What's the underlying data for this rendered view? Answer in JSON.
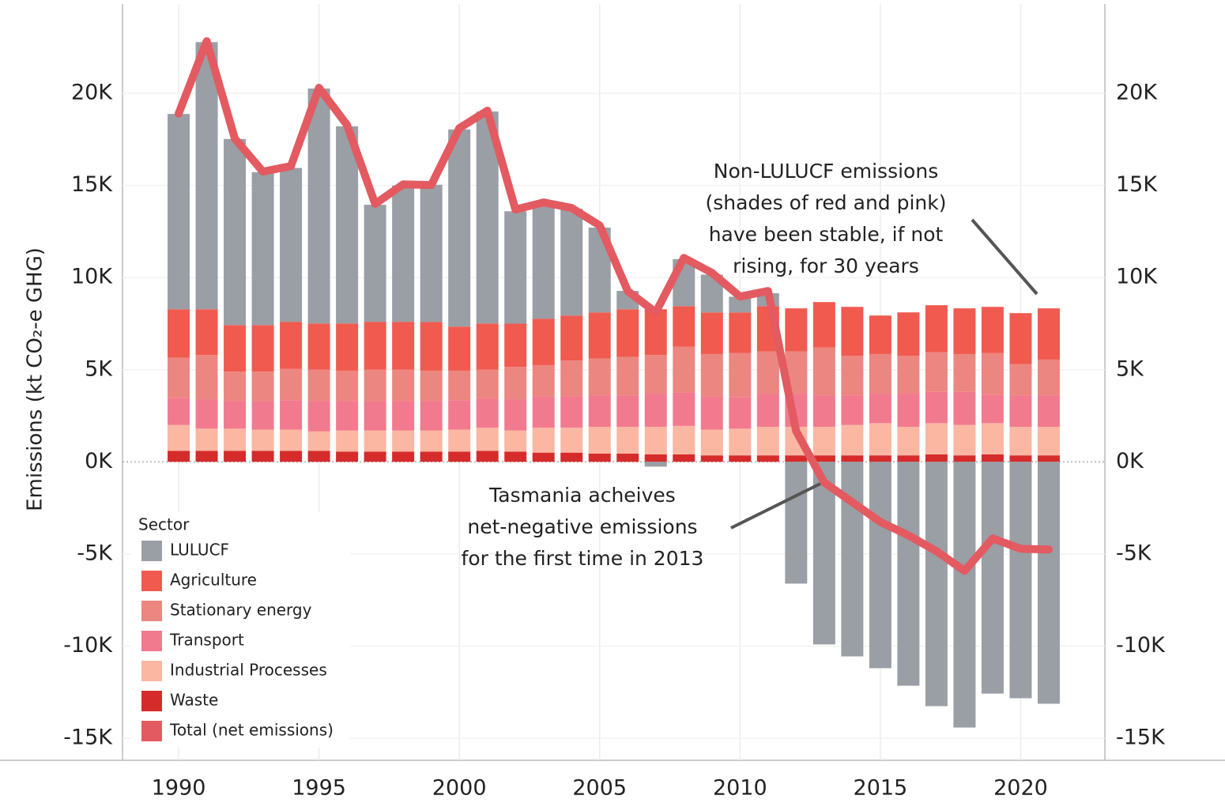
{
  "chart_data": {
    "type": "bar",
    "y_label": "Emissions (kt CO₂-e GHG)",
    "x": [
      1990,
      1991,
      1992,
      1993,
      1994,
      1995,
      1996,
      1997,
      1998,
      1999,
      2000,
      2001,
      2002,
      2003,
      2004,
      2005,
      2006,
      2007,
      2008,
      2009,
      2010,
      2011,
      2012,
      2013,
      2014,
      2015,
      2016,
      2017,
      2018,
      2019,
      2020,
      2021
    ],
    "xlim": [
      1988,
      2023
    ],
    "xticks": [
      1990,
      1995,
      2000,
      2005,
      2010,
      2015,
      2020
    ],
    "ylim": [
      -16200,
      24850
    ],
    "yticks": [
      {
        "value": -15000,
        "label": "-15K"
      },
      {
        "value": -10000,
        "label": "-10K"
      },
      {
        "value": -5000,
        "label": "-5K"
      },
      {
        "value": 0,
        "label": "0K"
      },
      {
        "value": 5000,
        "label": "5K"
      },
      {
        "value": 10000,
        "label": "10K"
      },
      {
        "value": 15000,
        "label": "15K"
      },
      {
        "value": 20000,
        "label": "20K"
      }
    ],
    "y2lim": [
      -16200,
      24850
    ],
    "y2ticks": [
      {
        "value": -15000,
        "label": "-15K"
      },
      {
        "value": -10000,
        "label": "-10K"
      },
      {
        "value": -5000,
        "label": "-5K"
      },
      {
        "value": 0,
        "label": "0K"
      },
      {
        "value": 5000,
        "label": "5K"
      },
      {
        "value": 10000,
        "label": "10K"
      },
      {
        "value": 15000,
        "label": "15K"
      },
      {
        "value": 20000,
        "label": "20K"
      }
    ],
    "grid": true,
    "legend_title": "Sector",
    "legend_position": "lower left",
    "series": [
      {
        "name": "LULUCF",
        "color": "#9a9ea5",
        "values": [
          10600,
          14500,
          10100,
          8300,
          8350,
          12750,
          10700,
          6350,
          7400,
          7450,
          10700,
          11500,
          6100,
          6100,
          5800,
          4600,
          1000,
          -260,
          2550,
          2050,
          850,
          700,
          -6610,
          -9910,
          -10560,
          -11200,
          -12150,
          -13260,
          -14420,
          -12580,
          -12830,
          -13130
        ]
      },
      {
        "name": "Agriculture",
        "color": "#f05a4f",
        "values": [
          2630,
          2480,
          2520,
          2520,
          2550,
          2510,
          2560,
          2600,
          2600,
          2640,
          2390,
          2510,
          2350,
          2520,
          2440,
          2510,
          2580,
          2480,
          2200,
          2260,
          2210,
          2450,
          2330,
          2470,
          2660,
          2090,
          2360,
          2550,
          2480,
          2510,
          2770,
          2780
        ]
      },
      {
        "name": "Stationary energy",
        "color": "#ec8680",
        "values": [
          2190,
          2400,
          1600,
          1600,
          1700,
          1700,
          1650,
          1700,
          1700,
          1650,
          1600,
          1550,
          1750,
          1700,
          1950,
          2000,
          2100,
          2100,
          2500,
          2300,
          2400,
          2300,
          2300,
          2600,
          2150,
          2150,
          2050,
          2150,
          2050,
          2250,
          1700,
          1950
        ]
      },
      {
        "name": "Transport",
        "color": "#f27a8e",
        "values": [
          1460,
          1600,
          1500,
          1550,
          1600,
          1650,
          1600,
          1600,
          1600,
          1600,
          1600,
          1600,
          1700,
          1700,
          1700,
          1700,
          1700,
          1800,
          1800,
          1800,
          1700,
          1800,
          1800,
          1700,
          1600,
          1600,
          1800,
          1700,
          1800,
          1550,
          1700,
          1700
        ]
      },
      {
        "name": "Industrial Processes",
        "color": "#fbb7a2",
        "values": [
          1400,
          1200,
          1200,
          1150,
          1150,
          1050,
          1150,
          1150,
          1150,
          1150,
          1200,
          1250,
          1150,
          1350,
          1350,
          1450,
          1450,
          1500,
          1550,
          1400,
          1450,
          1550,
          1550,
          1550,
          1650,
          1750,
          1550,
          1700,
          1650,
          1700,
          1550,
          1550
        ]
      },
      {
        "name": "Waste",
        "color": "#d62b2b",
        "values": [
          600,
          600,
          600,
          600,
          600,
          600,
          550,
          550,
          550,
          550,
          550,
          600,
          550,
          500,
          500,
          450,
          450,
          400,
          400,
          350,
          350,
          350,
          350,
          350,
          350,
          350,
          350,
          400,
          350,
          400,
          350,
          350
        ]
      },
      {
        "name": "Total (net emissions)",
        "color": "#e35a61",
        "type": "line",
        "values": [
          18900,
          22830,
          17550,
          15750,
          16050,
          20300,
          18280,
          14000,
          15060,
          15020,
          18110,
          19060,
          13690,
          14080,
          13780,
          12830,
          9270,
          8110,
          11070,
          10260,
          8970,
          9270,
          1670,
          -1120,
          -2190,
          -3260,
          -3990,
          -4850,
          -5920,
          -4160,
          -4720,
          -4760
        ]
      }
    ],
    "annotations": [
      {
        "lines": [
          "Non-LULUCF emissions",
          "(shades of red and pink)",
          "have been stable, if not",
          "rising, for 30 years"
        ]
      },
      {
        "lines": [
          "Tasmania acheives",
          "net-negative emissions",
          "for the first time in 2013"
        ]
      }
    ]
  }
}
